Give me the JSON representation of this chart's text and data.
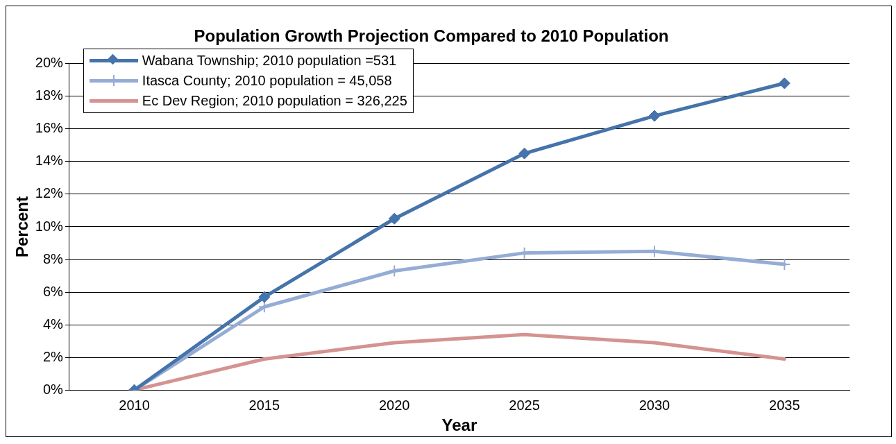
{
  "chart_data": {
    "type": "line",
    "title": "Population Growth Projection Compared to 2010 Population",
    "xlabel": "Year",
    "ylabel": "Percent",
    "categories": [
      "2010",
      "2015",
      "2020",
      "2025",
      "2030",
      "2035"
    ],
    "series": [
      {
        "name": "Wabana Township; 2010 population =531",
        "color": "#4573ab",
        "marker": "diamond",
        "values": [
          0,
          5.7,
          10.5,
          14.5,
          16.8,
          18.8
        ]
      },
      {
        "name": "Itasca County; 2010 population = 45,058",
        "color": "#95acd5",
        "marker": "cross",
        "values": [
          0,
          5.1,
          7.3,
          8.4,
          8.5,
          7.7
        ]
      },
      {
        "name": "Ec Dev Region; 2010 population = 326,225",
        "color": "#d49391",
        "marker": "none",
        "values": [
          0,
          1.9,
          2.9,
          3.4,
          2.9,
          1.9
        ]
      }
    ],
    "ylim": [
      0,
      20
    ],
    "yticks": [
      {
        "value": 0,
        "label": "0%"
      },
      {
        "value": 2,
        "label": "2%"
      },
      {
        "value": 4,
        "label": "4%"
      },
      {
        "value": 6,
        "label": "6%"
      },
      {
        "value": 8,
        "label": "8%"
      },
      {
        "value": 10,
        "label": "10%"
      },
      {
        "value": 12,
        "label": "12%"
      },
      {
        "value": 14,
        "label": "14%"
      },
      {
        "value": 16,
        "label": "16%"
      },
      {
        "value": 18,
        "label": "18%"
      },
      {
        "value": 20,
        "label": "20%"
      }
    ],
    "grid": "y",
    "legend": "top left"
  }
}
